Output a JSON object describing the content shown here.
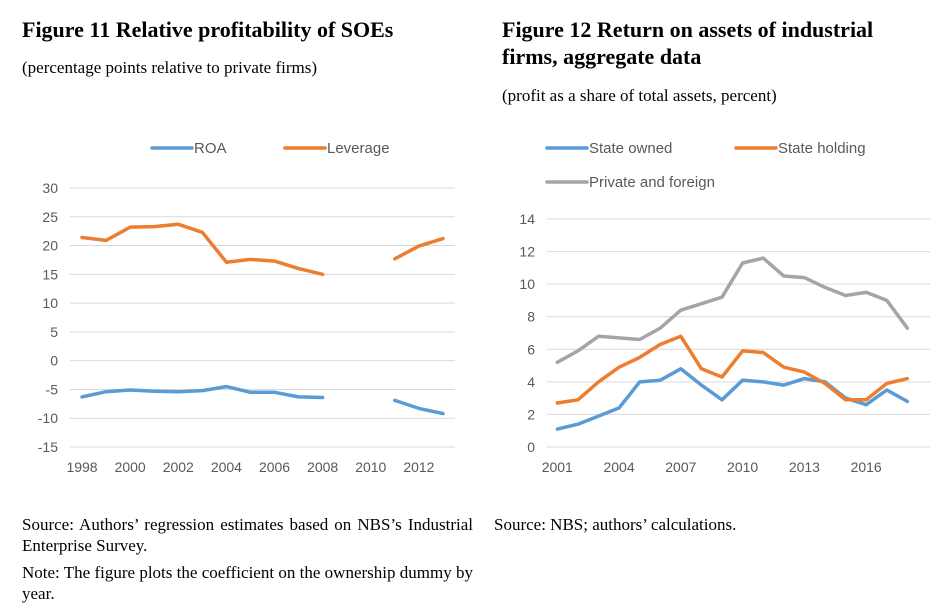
{
  "figures": [
    {
      "title": "Figure 11 Relative profitability of SOEs",
      "subtitle": "(percentage points relative to private firms)",
      "source": "Source: Authors’ regression estimates based on NBS’s Industrial Enterprise Survey.",
      "note": "Note: The figure plots the coefficient on the ownership dummy by year."
    },
    {
      "title": "Figure 12 Return on assets of industrial firms, aggregate data",
      "subtitle": "(profit as a share of total assets, percent)",
      "source": "Source: NBS; authors’ calculations."
    }
  ],
  "chart_data": [
    {
      "type": "line",
      "x": [
        1998,
        1999,
        2000,
        2001,
        2002,
        2003,
        2004,
        2005,
        2006,
        2007,
        2008,
        2009,
        2010,
        2011,
        2012,
        2013
      ],
      "xticks": [
        "1998",
        "2000",
        "2002",
        "2004",
        "2006",
        "2008",
        "2010",
        "2012"
      ],
      "ylim": [
        -15,
        30
      ],
      "yticks": [
        "30",
        "25",
        "20",
        "15",
        "10",
        "5",
        "0",
        "-5",
        "-10",
        "-15"
      ],
      "grid": true,
      "legend": "top",
      "series": [
        {
          "name": "ROA",
          "color": "#5B9BD5",
          "values": [
            -6.3,
            -5.4,
            -5.1,
            -5.3,
            -5.4,
            -5.2,
            -4.5,
            -5.5,
            -5.5,
            -6.3,
            -6.4,
            null,
            null,
            -6.9,
            -8.3,
            -9.2
          ]
        },
        {
          "name": "Leverage",
          "color": "#ED7D31",
          "values": [
            21.4,
            20.9,
            23.2,
            23.3,
            23.7,
            22.3,
            17.1,
            17.6,
            17.3,
            16.0,
            15.0,
            null,
            null,
            17.7,
            19.9,
            21.2
          ]
        }
      ]
    },
    {
      "type": "line",
      "x": [
        2001,
        2002,
        2003,
        2004,
        2005,
        2006,
        2007,
        2008,
        2009,
        2010,
        2011,
        2012,
        2013,
        2014,
        2015,
        2016,
        2017,
        2018
      ],
      "xticks": [
        "2001",
        "2004",
        "2007",
        "2010",
        "2013",
        "2016"
      ],
      "ylim": [
        0,
        14
      ],
      "yticks": [
        "14",
        "12",
        "10",
        "8",
        "6",
        "4",
        "2",
        "0"
      ],
      "grid": true,
      "legend": "top",
      "series": [
        {
          "name": "State owned",
          "color": "#5B9BD5",
          "values": [
            1.1,
            1.4,
            1.9,
            2.4,
            4.0,
            4.1,
            4.8,
            3.8,
            2.9,
            4.1,
            4.0,
            3.8,
            4.2,
            4.0,
            3.0,
            2.6,
            3.5,
            2.8
          ]
        },
        {
          "name": "State holding",
          "color": "#ED7D31",
          "values": [
            2.7,
            2.9,
            4.0,
            4.9,
            5.5,
            6.3,
            6.8,
            4.8,
            4.3,
            5.9,
            5.8,
            4.9,
            4.6,
            3.9,
            2.9,
            2.9,
            3.9,
            4.2
          ]
        },
        {
          "name": "Private and foreign",
          "color": "#A5A5A5",
          "values": [
            5.2,
            5.9,
            6.8,
            6.7,
            6.6,
            7.3,
            8.4,
            8.8,
            9.2,
            11.3,
            11.6,
            10.5,
            10.4,
            9.8,
            9.3,
            9.5,
            9.0,
            7.3
          ]
        }
      ]
    }
  ]
}
